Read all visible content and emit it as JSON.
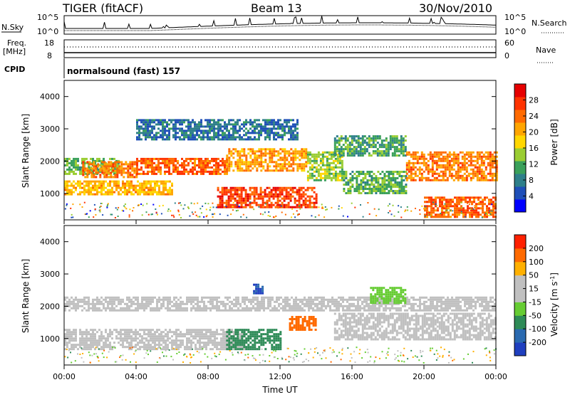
{
  "header": {
    "station": "TIGER (fitACF)",
    "beam": "Beam 13",
    "date": "30/Nov/2010"
  },
  "top_panels": {
    "nsky_label": "N.Sky",
    "nsky_ticks": [
      "10^5",
      "10^0"
    ],
    "nsearch_label": "N.Search",
    "nsearch_ticks": [
      "10^5",
      "10^0"
    ],
    "freq_label_line1": "Freq.",
    "freq_label_line2": "[MHz]",
    "freq_ticks": [
      "18",
      "8"
    ],
    "nave_label": "Nave",
    "nave_ticks": [
      "60",
      "0"
    ],
    "cpid_label": "CPID",
    "cpid_value": "normalsound (fast) 157"
  },
  "chart_data": [
    {
      "type": "heatmap",
      "panel": "power",
      "ylabel": "Slant Range [km]",
      "yticks": [
        "4000",
        "3000",
        "2000",
        "1000"
      ],
      "ylim": [
        180,
        4500
      ],
      "xlim": [
        0,
        24
      ],
      "colorbar_label": "Power [dB]",
      "colorbar_ticks": [
        "28",
        "24",
        "20",
        "16",
        "12",
        "8",
        "4"
      ],
      "colorbar_colors": [
        "#0000ff",
        "#1f4fb8",
        "#2e7f8a",
        "#3aa05a",
        "#9acd32",
        "#ffd700",
        "#ffa500",
        "#ff6a00",
        "#ff3300",
        "#e60000"
      ],
      "bands": [
        {
          "x": [
            0,
            3
          ],
          "y": [
            1600,
            2100
          ],
          "value": 12
        },
        {
          "x": [
            1,
            4
          ],
          "y": [
            1500,
            2000
          ],
          "value": 24
        },
        {
          "x": [
            4,
            9
          ],
          "y": [
            1600,
            2100
          ],
          "value": 26
        },
        {
          "x": [
            9,
            13.5
          ],
          "y": [
            1700,
            2400
          ],
          "value": 22
        },
        {
          "x": [
            0,
            6
          ],
          "y": [
            1000,
            1400
          ],
          "value": 20
        },
        {
          "x": [
            8.5,
            14
          ],
          "y": [
            600,
            1200
          ],
          "value": 28
        },
        {
          "x": [
            13.5,
            15.5
          ],
          "y": [
            1400,
            2300
          ],
          "value": 14
        },
        {
          "x": [
            15,
            19
          ],
          "y": [
            2200,
            2800
          ],
          "value": 10
        },
        {
          "x": [
            15.5,
            19
          ],
          "y": [
            1000,
            1700
          ],
          "value": 12
        },
        {
          "x": [
            19,
            24
          ],
          "y": [
            1400,
            2300
          ],
          "value": 24
        },
        {
          "x": [
            20,
            24
          ],
          "y": [
            300,
            900
          ],
          "value": 26
        },
        {
          "x": [
            4,
            13
          ],
          "y": [
            2700,
            3300
          ],
          "value": 6
        }
      ]
    },
    {
      "type": "heatmap",
      "panel": "velocity",
      "ylabel": "Slant Range [km]",
      "yticks": [
        "4000",
        "3000",
        "2000",
        "1000"
      ],
      "ylim": [
        180,
        4500
      ],
      "xlim": [
        0,
        24
      ],
      "xticks": [
        "00:00",
        "04:00",
        "08:00",
        "12:00",
        "16:00",
        "20:00",
        "00:00"
      ],
      "xlabel": "Time UT",
      "colorbar_label": "Velocity [m s",
      "colorbar_label_sup": "-1",
      "colorbar_label_end": "]",
      "colorbar_ticks": [
        "200",
        "100",
        "50",
        "15",
        "-15",
        "-50",
        "-100",
        "-200"
      ],
      "colorbar_colors": [
        "#1f3fbf",
        "#2a6ab0",
        "#2e8b57",
        "#66cc33",
        "#c0c0c0",
        "#c0c0c0",
        "#ffb000",
        "#ff6a00",
        "#ff2000"
      ],
      "bands": [
        {
          "x": [
            0,
            24
          ],
          "y": [
            1900,
            2300
          ],
          "value": 0
        },
        {
          "x": [
            0,
            10
          ],
          "y": [
            700,
            1300
          ],
          "value": 0
        },
        {
          "x": [
            9,
            12
          ],
          "y": [
            700,
            1300
          ],
          "value": 60
        },
        {
          "x": [
            12.5,
            14
          ],
          "y": [
            1300,
            1700
          ],
          "value": -80
        },
        {
          "x": [
            17,
            19
          ],
          "y": [
            2100,
            2600
          ],
          "value": 40
        },
        {
          "x": [
            15,
            24
          ],
          "y": [
            1000,
            1800
          ],
          "value": 0
        },
        {
          "x": [
            10.5,
            11
          ],
          "y": [
            2400,
            2700
          ],
          "value": 150
        }
      ]
    }
  ]
}
